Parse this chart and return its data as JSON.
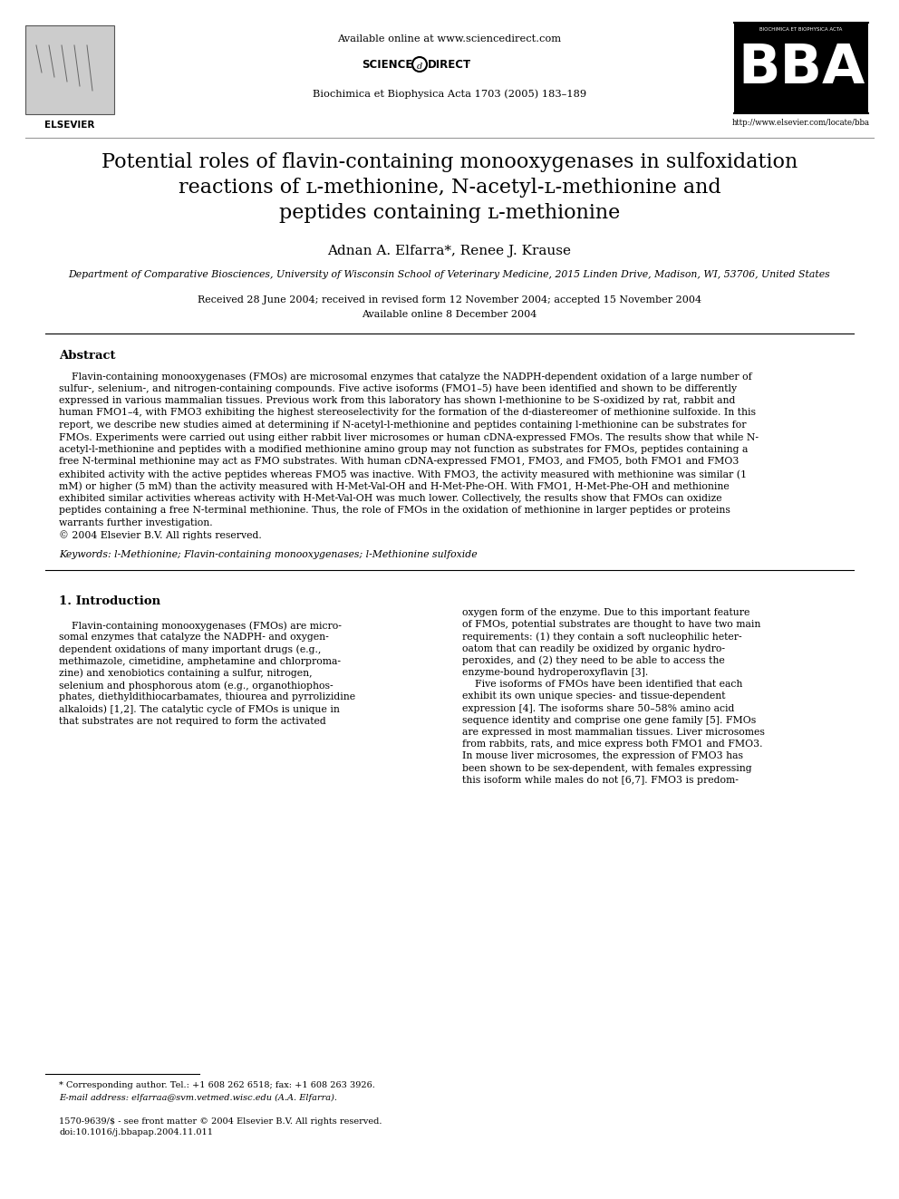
{
  "bg_color": "#ffffff",
  "header_available_online": "Available online at www.sciencedirect.com",
  "journal_name": "Biochimica et Biophysica Acta 1703 (2005) 183–189",
  "bba_url": "http://www.elsevier.com/locate/bba",
  "title_line1": "Potential roles of flavin-containing monooxygenases in sulfoxidation",
  "title_line2": "reactions of ʟ-methionine, N-acetyl-ʟ-methionine and",
  "title_line3": "peptides containing ʟ-methionine",
  "authors": "Adnan A. Elfarra*, Renee J. Krause",
  "affiliation": "Department of Comparative Biosciences, University of Wisconsin School of Veterinary Medicine, 2015 Linden Drive, Madison, WI, 53706, United States",
  "received": "Received 28 June 2004; received in revised form 12 November 2004; accepted 15 November 2004",
  "available_online": "Available online 8 December 2004",
  "abstract_title": "Abstract",
  "abstract_lines": [
    "    Flavin-containing monooxygenases (FMOs) are microsomal enzymes that catalyze the NADPH-dependent oxidation of a large number of",
    "sulfur-, selenium-, and nitrogen-containing compounds. Five active isoforms (FMO1–5) have been identified and shown to be differently",
    "expressed in various mammalian tissues. Previous work from this laboratory has shown l-methionine to be S-oxidized by rat, rabbit and",
    "human FMO1–4, with FMO3 exhibiting the highest stereoselectivity for the formation of the d-diastereomer of methionine sulfoxide. In this",
    "report, we describe new studies aimed at determining if N-acetyl-l-methionine and peptides containing l-methionine can be substrates for",
    "FMOs. Experiments were carried out using either rabbit liver microsomes or human cDNA-expressed FMOs. The results show that while N-",
    "acetyl-l-methionine and peptides with a modified methionine amino group may not function as substrates for FMOs, peptides containing a",
    "free N-terminal methionine may act as FMO substrates. With human cDNA-expressed FMO1, FMO3, and FMO5, both FMO1 and FMO3",
    "exhibited activity with the active peptides whereas FMO5 was inactive. With FMO3, the activity measured with methionine was similar (1",
    "mM) or higher (5 mM) than the activity measured with H-Met-Val-OH and H-Met-Phe-OH. With FMO1, H-Met-Phe-OH and methionine",
    "exhibited similar activities whereas activity with H-Met-Val-OH was much lower. Collectively, the results show that FMOs can oxidize",
    "peptides containing a free N-terminal methionine. Thus, the role of FMOs in the oxidation of methionine in larger peptides or proteins",
    "warrants further investigation.",
    "© 2004 Elsevier B.V. All rights reserved."
  ],
  "keywords": "Keywords: l-Methionine; Flavin-containing monooxygenases; l-Methionine sulfoxide",
  "section1_title": "1. Introduction",
  "intro_col1_lines": [
    "    Flavin-containing monooxygenases (FMOs) are micro-",
    "somal enzymes that catalyze the NADPH- and oxygen-",
    "dependent oxidations of many important drugs (e.g.,",
    "methimazole, cimetidine, amphetamine and chlorproma-",
    "zine) and xenobiotics containing a sulfur, nitrogen,",
    "selenium and phosphorous atom (e.g., organothiophos-",
    "phates, diethyldithiocarbamates, thiourea and pyrrolizidine",
    "alkaloids) [1,2]. The catalytic cycle of FMOs is unique in",
    "that substrates are not required to form the activated"
  ],
  "intro_col2_lines": [
    "oxygen form of the enzyme. Due to this important feature",
    "of FMOs, potential substrates are thought to have two main",
    "requirements: (1) they contain a soft nucleophilic heter-",
    "oatom that can readily be oxidized by organic hydro-",
    "peroxides, and (2) they need to be able to access the",
    "enzyme-bound hydroperoxyflavin [3].",
    "    Five isoforms of FMOs have been identified that each",
    "exhibit its own unique species- and tissue-dependent",
    "expression [4]. The isoforms share 50–58% amino acid",
    "sequence identity and comprise one gene family [5]. FMOs",
    "are expressed in most mammalian tissues. Liver microsomes",
    "from rabbits, rats, and mice express both FMO1 and FMO3.",
    "In mouse liver microsomes, the expression of FMO3 has",
    "been shown to be sex-dependent, with females expressing",
    "this isoform while males do not [6,7]. FMO3 is predom-"
  ],
  "footnote_star": "* Corresponding author. Tel.: +1 608 262 6518; fax: +1 608 263 3926.",
  "footnote_email": "E-mail address: elfarraa@svm.vetmed.wisc.edu (A.A. Elfarra).",
  "footer_issn": "1570-9639/$ - see front matter © 2004 Elsevier B.V. All rights reserved.",
  "footer_doi": "doi:10.1016/j.bbapap.2004.11.011",
  "ref_color": "#0000cc"
}
